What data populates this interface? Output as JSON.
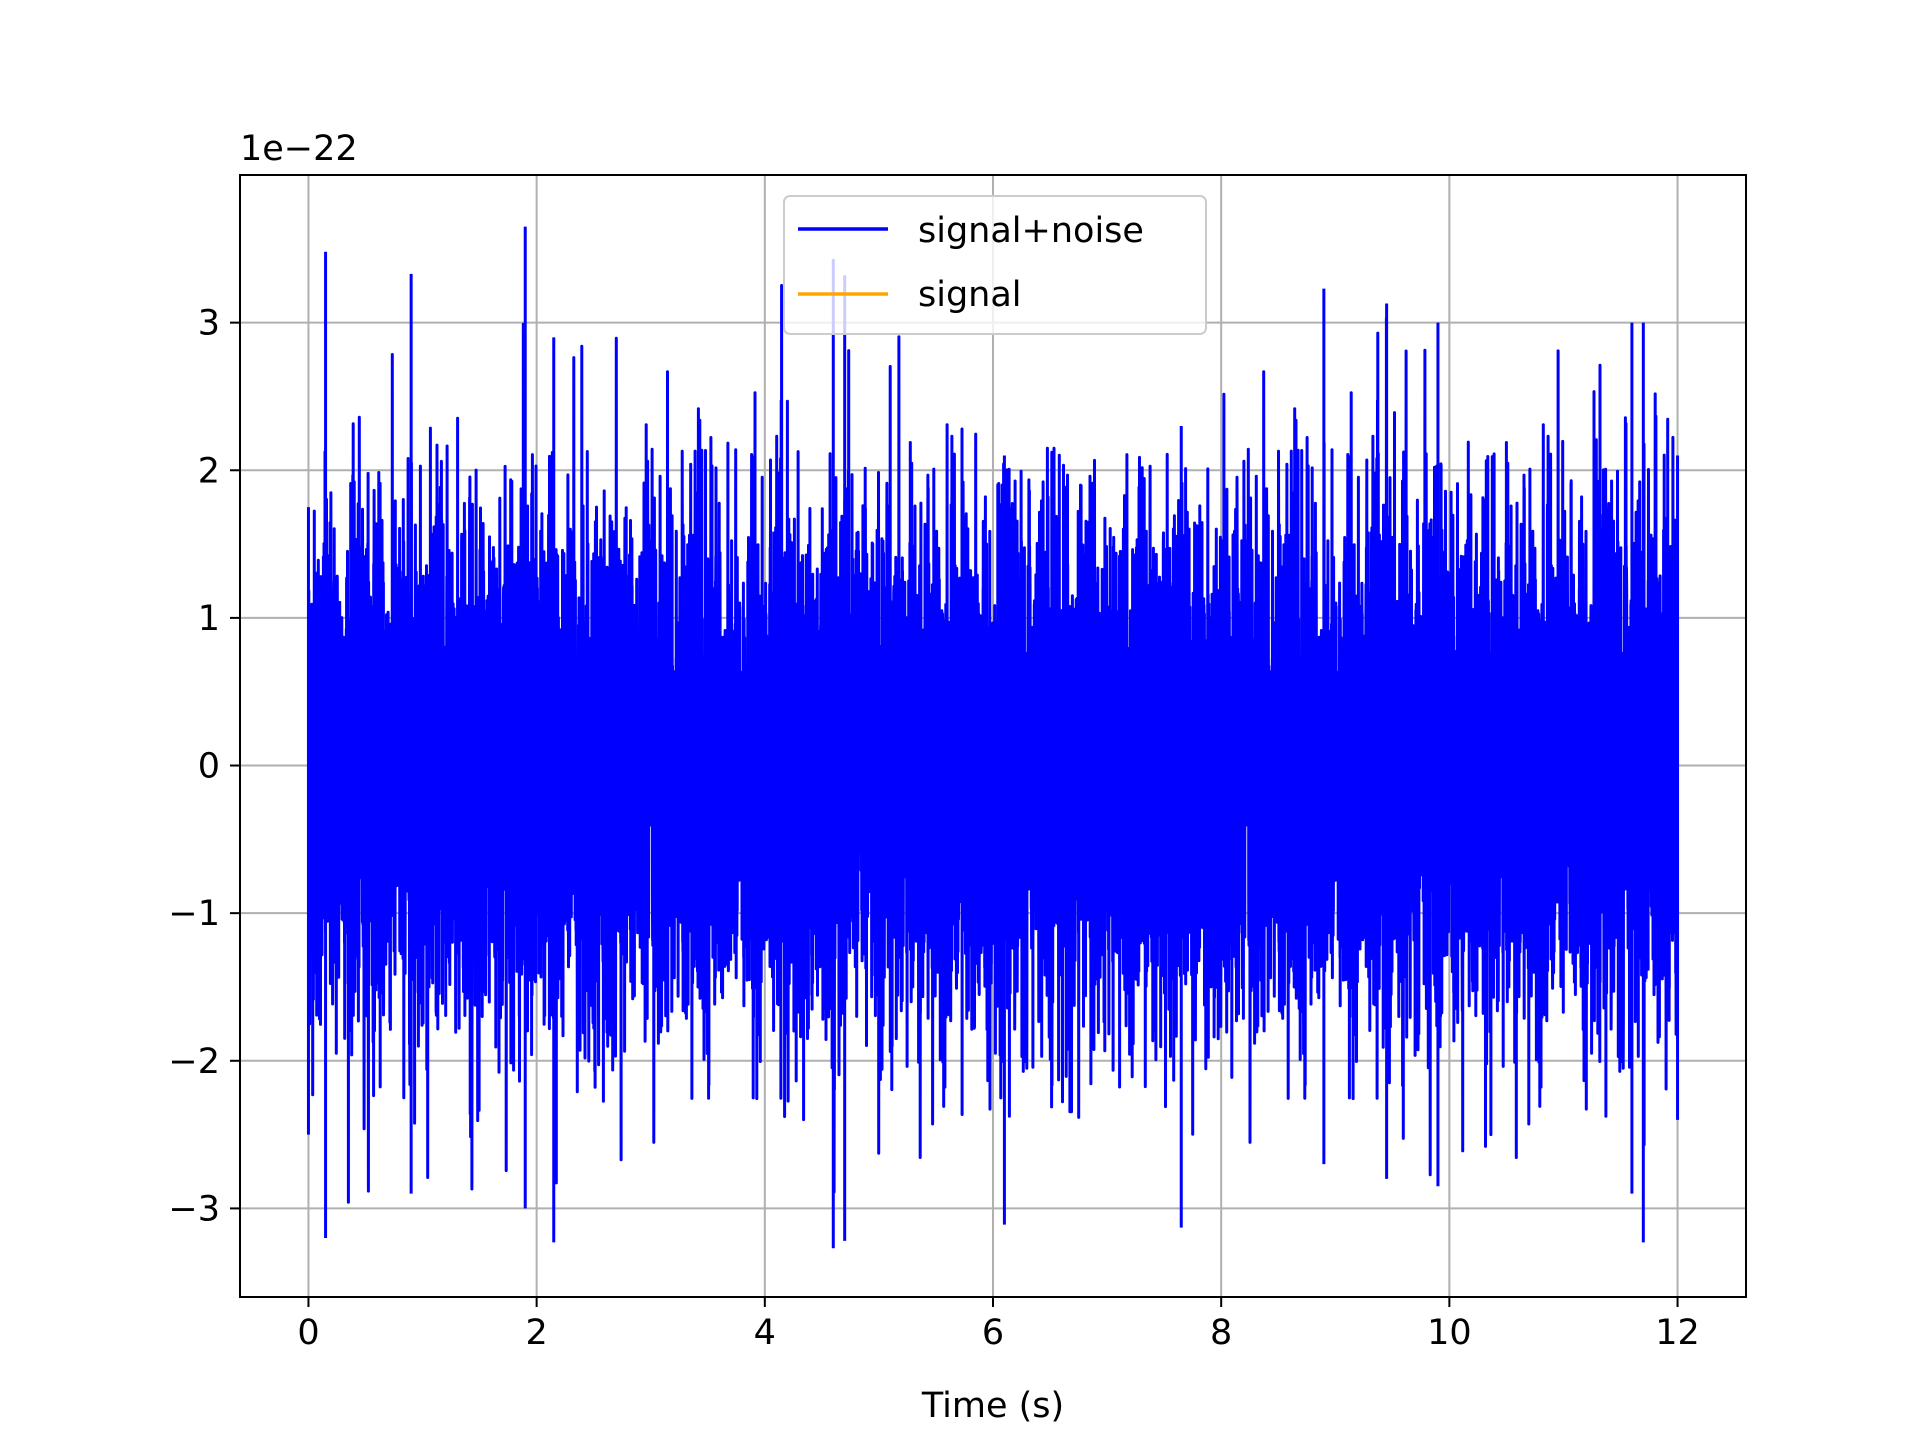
{
  "chart_data": {
    "type": "line",
    "title": "",
    "xlabel": "Time (s)",
    "ylabel": "",
    "y_offset_text": "1e−22",
    "y_scale_exponent": -22,
    "xlim": [
      -0.6,
      12.6
    ],
    "ylim": [
      -3.6,
      4.0
    ],
    "xticks": [
      0,
      2,
      4,
      6,
      8,
      10,
      12
    ],
    "xtick_labels": [
      "0",
      "2",
      "4",
      "6",
      "8",
      "10",
      "12"
    ],
    "yticks": [
      -3,
      -2,
      -1,
      0,
      1,
      2,
      3
    ],
    "ytick_labels": [
      "−3",
      "−2",
      "−1",
      "0",
      "1",
      "2",
      "3"
    ],
    "grid": true,
    "legend_position": "upper center",
    "x_range": [
      0,
      12
    ],
    "series": [
      {
        "name": "signal+noise",
        "color": "#0000ff",
        "style": "dense noise",
        "envelope": {
          "x": [
            0,
            0.15,
            0.9,
            1.9,
            2.15,
            4.6,
            4.7,
            6.1,
            7.65,
            8.9,
            9.45,
            9.9,
            11.6,
            11.7,
            12
          ],
          "max": [
            1.75,
            3.48,
            3.33,
            3.65,
            2.9,
            3.43,
            3.32,
            2.1,
            2.3,
            3.23,
            3.13,
            3.0,
            3.0,
            3.0,
            2.1
          ],
          "min": [
            -2.5,
            -3.2,
            -2.9,
            -3.0,
            -3.23,
            -3.27,
            -3.22,
            -3.11,
            -3.13,
            -2.7,
            -2.8,
            -2.85,
            -2.9,
            -3.23,
            -2.4
          ]
        },
        "samples": 12000,
        "std": 0.85
      },
      {
        "name": "signal",
        "color": "#ffa500",
        "values": []
      }
    ]
  }
}
